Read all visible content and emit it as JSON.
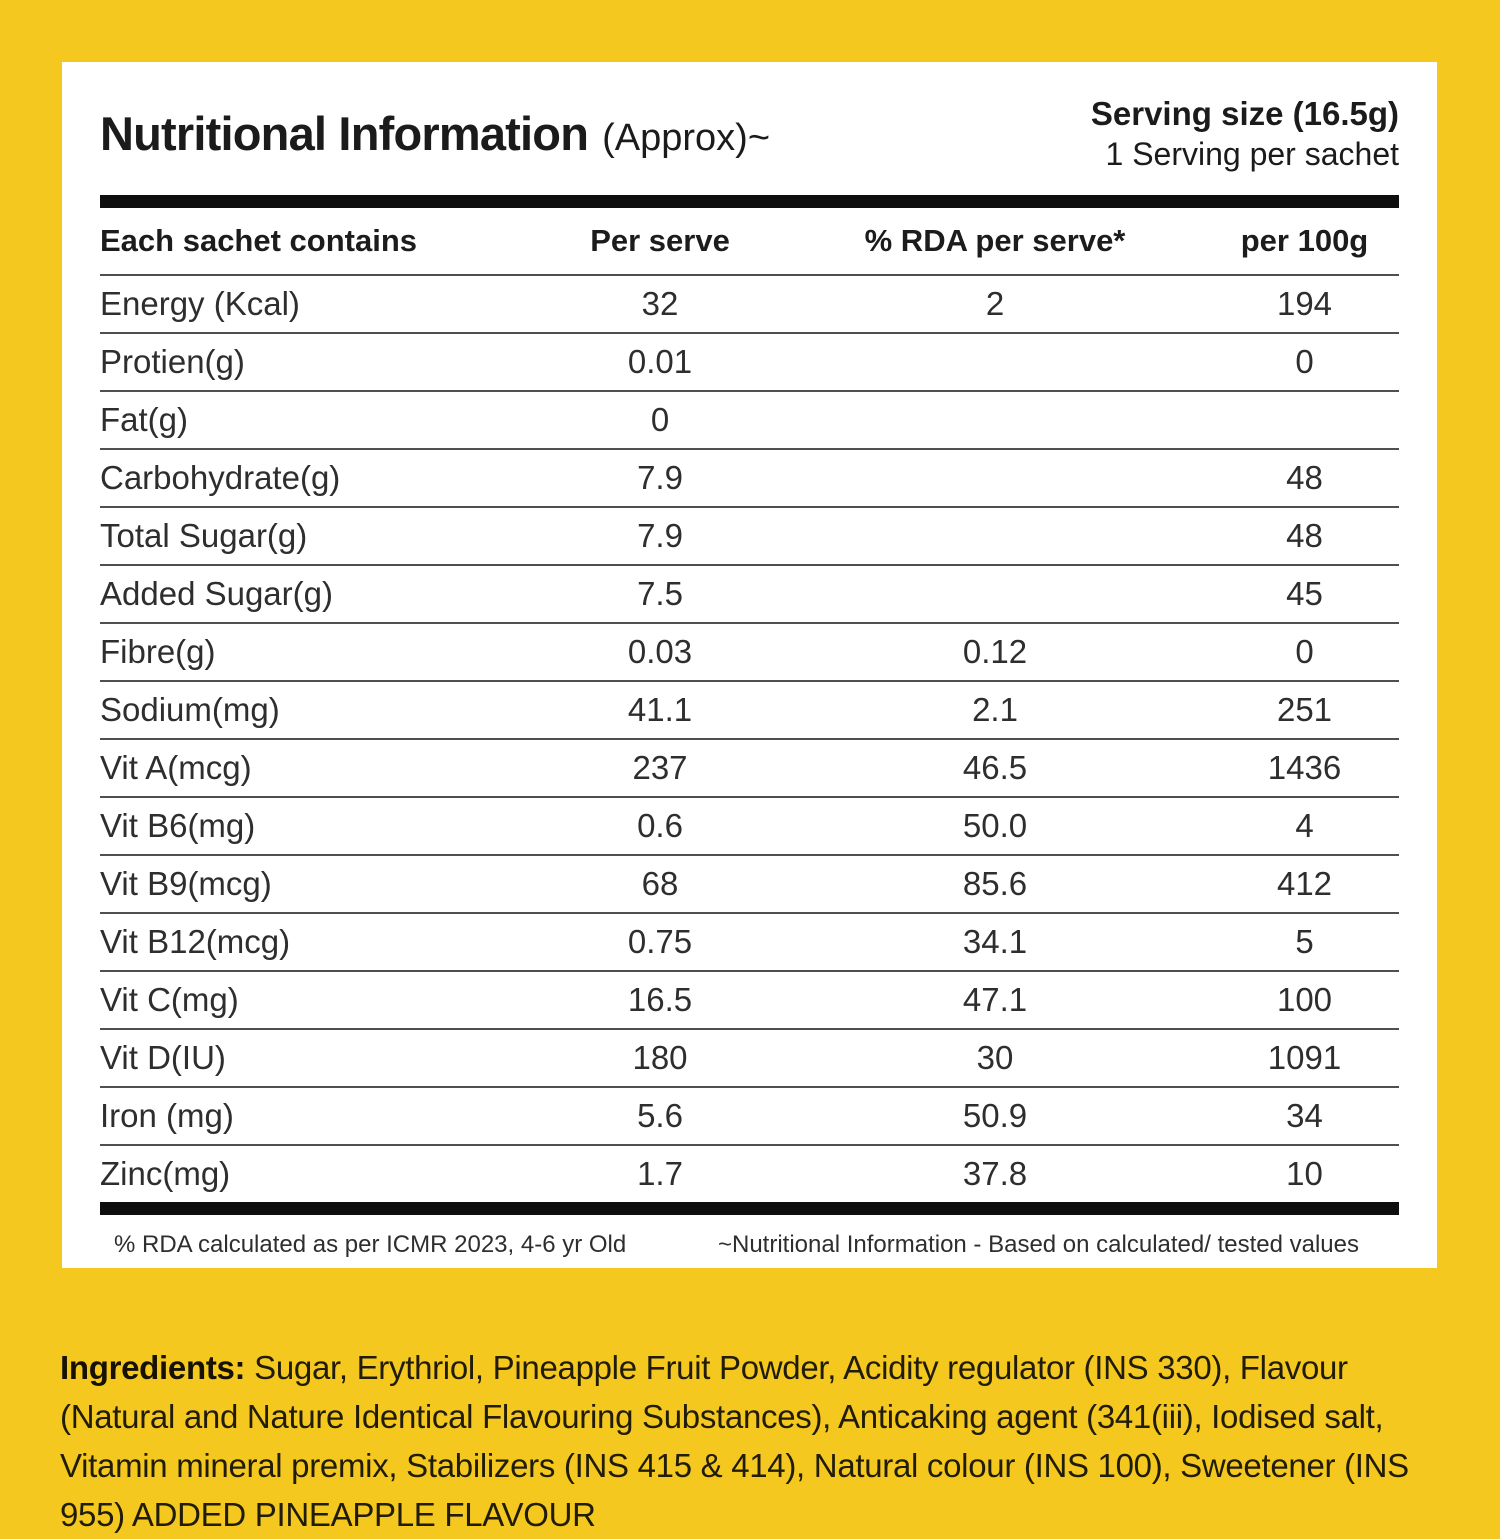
{
  "header": {
    "title": "Nutritional Information",
    "title_suffix": "(Approx)~",
    "serving_size": "Serving size (16.5g)",
    "serving_note": "1 Serving per sachet"
  },
  "table": {
    "columns": [
      "Each sachet contains",
      "Per serve",
      "% RDA per serve*",
      "per 100g"
    ],
    "rows": [
      {
        "label": "Energy (Kcal)",
        "per_serve": "32",
        "rda": "2",
        "per_100g": "194"
      },
      {
        "label": "Protien(g)",
        "per_serve": "0.01",
        "rda": "",
        "per_100g": "0"
      },
      {
        "label": "Fat(g)",
        "per_serve": "0",
        "rda": "",
        "per_100g": ""
      },
      {
        "label": "Carbohydrate(g)",
        "per_serve": "7.9",
        "rda": "",
        "per_100g": "48"
      },
      {
        "label": "Total Sugar(g)",
        "per_serve": "7.9",
        "rda": "",
        "per_100g": "48"
      },
      {
        "label": "Added Sugar(g)",
        "per_serve": "7.5",
        "rda": "",
        "per_100g": "45"
      },
      {
        "label": "Fibre(g)",
        "per_serve": "0.03",
        "rda": "0.12",
        "per_100g": "0"
      },
      {
        "label": "Sodium(mg)",
        "per_serve": "41.1",
        "rda": "2.1",
        "per_100g": "251"
      },
      {
        "label": "Vit A(mcg)",
        "per_serve": "237",
        "rda": "46.5",
        "per_100g": "1436"
      },
      {
        "label": "Vit B6(mg)",
        "per_serve": "0.6",
        "rda": "50.0",
        "per_100g": "4"
      },
      {
        "label": "Vit B9(mcg)",
        "per_serve": "68",
        "rda": "85.6",
        "per_100g": "412"
      },
      {
        "label": "Vit B12(mcg)",
        "per_serve": "0.75",
        "rda": "34.1",
        "per_100g": "5"
      },
      {
        "label": "Vit C(mg)",
        "per_serve": "16.5",
        "rda": "47.1",
        "per_100g": "100"
      },
      {
        "label": "Vit D(IU)",
        "per_serve": "180",
        "rda": "30",
        "per_100g": "1091"
      },
      {
        "label": "Iron (mg)",
        "per_serve": "5.6",
        "rda": "50.9",
        "per_100g": "34"
      },
      {
        "label": "Zinc(mg)",
        "per_serve": "1.7",
        "rda": "37.8",
        "per_100g": "10"
      }
    ]
  },
  "footnotes": {
    "left": "% RDA calculated as per ICMR 2023, 4-6 yr Old",
    "right": "~Nutritional Information - Based on calculated/ tested values"
  },
  "ingredients": {
    "label": "Ingredients:",
    "text": "Sugar, Erythriol, Pineapple Fruit Powder, Acidity regulator (INS 330), Flavour (Natural and Nature Identical Flavouring Substances), Anticaking agent (341(iii), Iodised salt, Vitamin mineral premix, Stabilizers (INS 415 & 414), Natural colour (INS 100), Sweetener (INS 955) ADDED PINEAPPLE FLAVOUR"
  },
  "colors": {
    "background": "#F4C81F",
    "card": "#FFFFFF",
    "rule": "#0E0E0E",
    "divider": "#4F4F4F",
    "text": "#2E2E2E"
  }
}
